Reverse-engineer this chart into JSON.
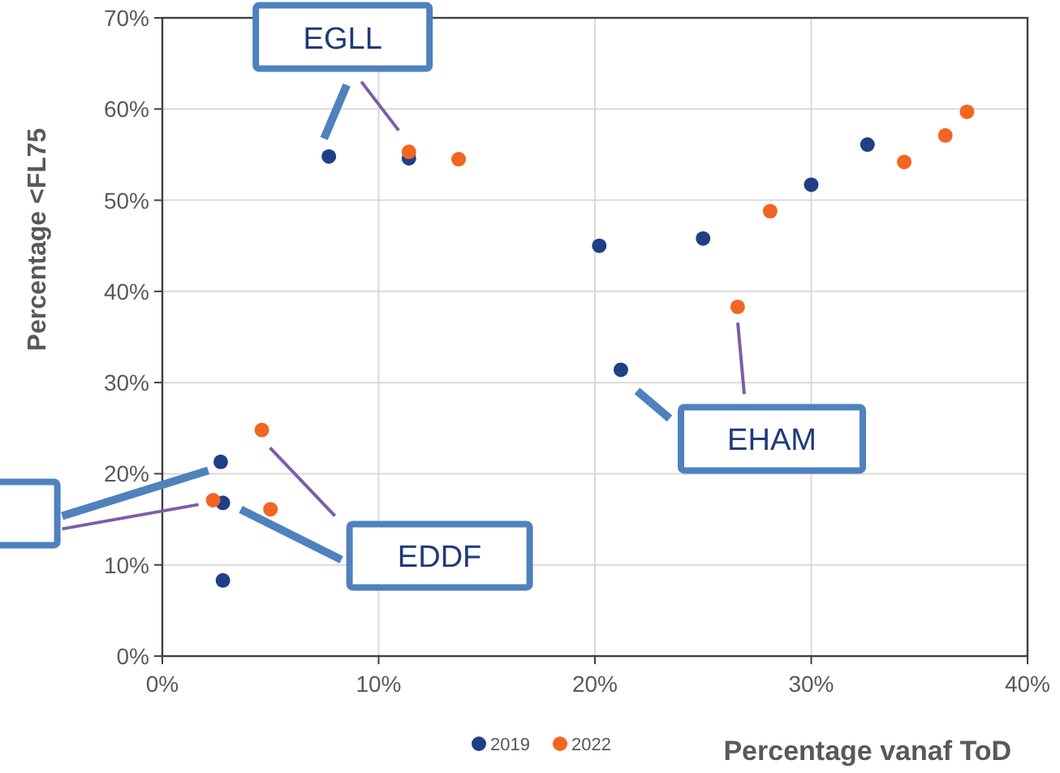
{
  "chart_data": {
    "type": "scatter",
    "xlabel": "Percentage vanaf ToD",
    "ylabel": "Percentage <FL75",
    "xlim": [
      0,
      40
    ],
    "ylim": [
      0,
      70
    ],
    "xticks": [
      {
        "value": 0,
        "label": "0%"
      },
      {
        "value": 10,
        "label": "10%"
      },
      {
        "value": 20,
        "label": "20%"
      },
      {
        "value": 30,
        "label": "30%"
      },
      {
        "value": 40,
        "label": "40%"
      }
    ],
    "yticks": [
      {
        "value": 0,
        "label": "0%"
      },
      {
        "value": 10,
        "label": "10%"
      },
      {
        "value": 20,
        "label": "20%"
      },
      {
        "value": 30,
        "label": "30%"
      },
      {
        "value": 40,
        "label": "40%"
      },
      {
        "value": 50,
        "label": "50%"
      },
      {
        "value": 60,
        "label": "60%"
      },
      {
        "value": 70,
        "label": "70%"
      }
    ],
    "grid": true,
    "legend": "bottom",
    "marker": "circle",
    "series": [
      {
        "name": "2019",
        "color": "#203f86",
        "x": [
          7.7,
          11.4,
          2.7,
          2.8,
          2.8,
          20.2,
          25.0,
          30.0,
          32.6,
          21.2
        ],
        "values": [
          54.8,
          54.6,
          21.3,
          16.8,
          8.3,
          45.0,
          45.8,
          51.7,
          56.1,
          31.4
        ]
      },
      {
        "name": "2022",
        "color": "#f26522",
        "x": [
          11.4,
          13.7,
          4.6,
          2.35,
          5.0,
          26.6,
          28.1,
          34.3,
          36.2,
          37.2
        ],
        "values": [
          55.3,
          54.5,
          24.8,
          17.1,
          16.1,
          38.3,
          48.8,
          54.2,
          57.1,
          59.7
        ]
      }
    ],
    "annotations": [
      "EGLL",
      "EDDF",
      "EHAM"
    ]
  }
}
